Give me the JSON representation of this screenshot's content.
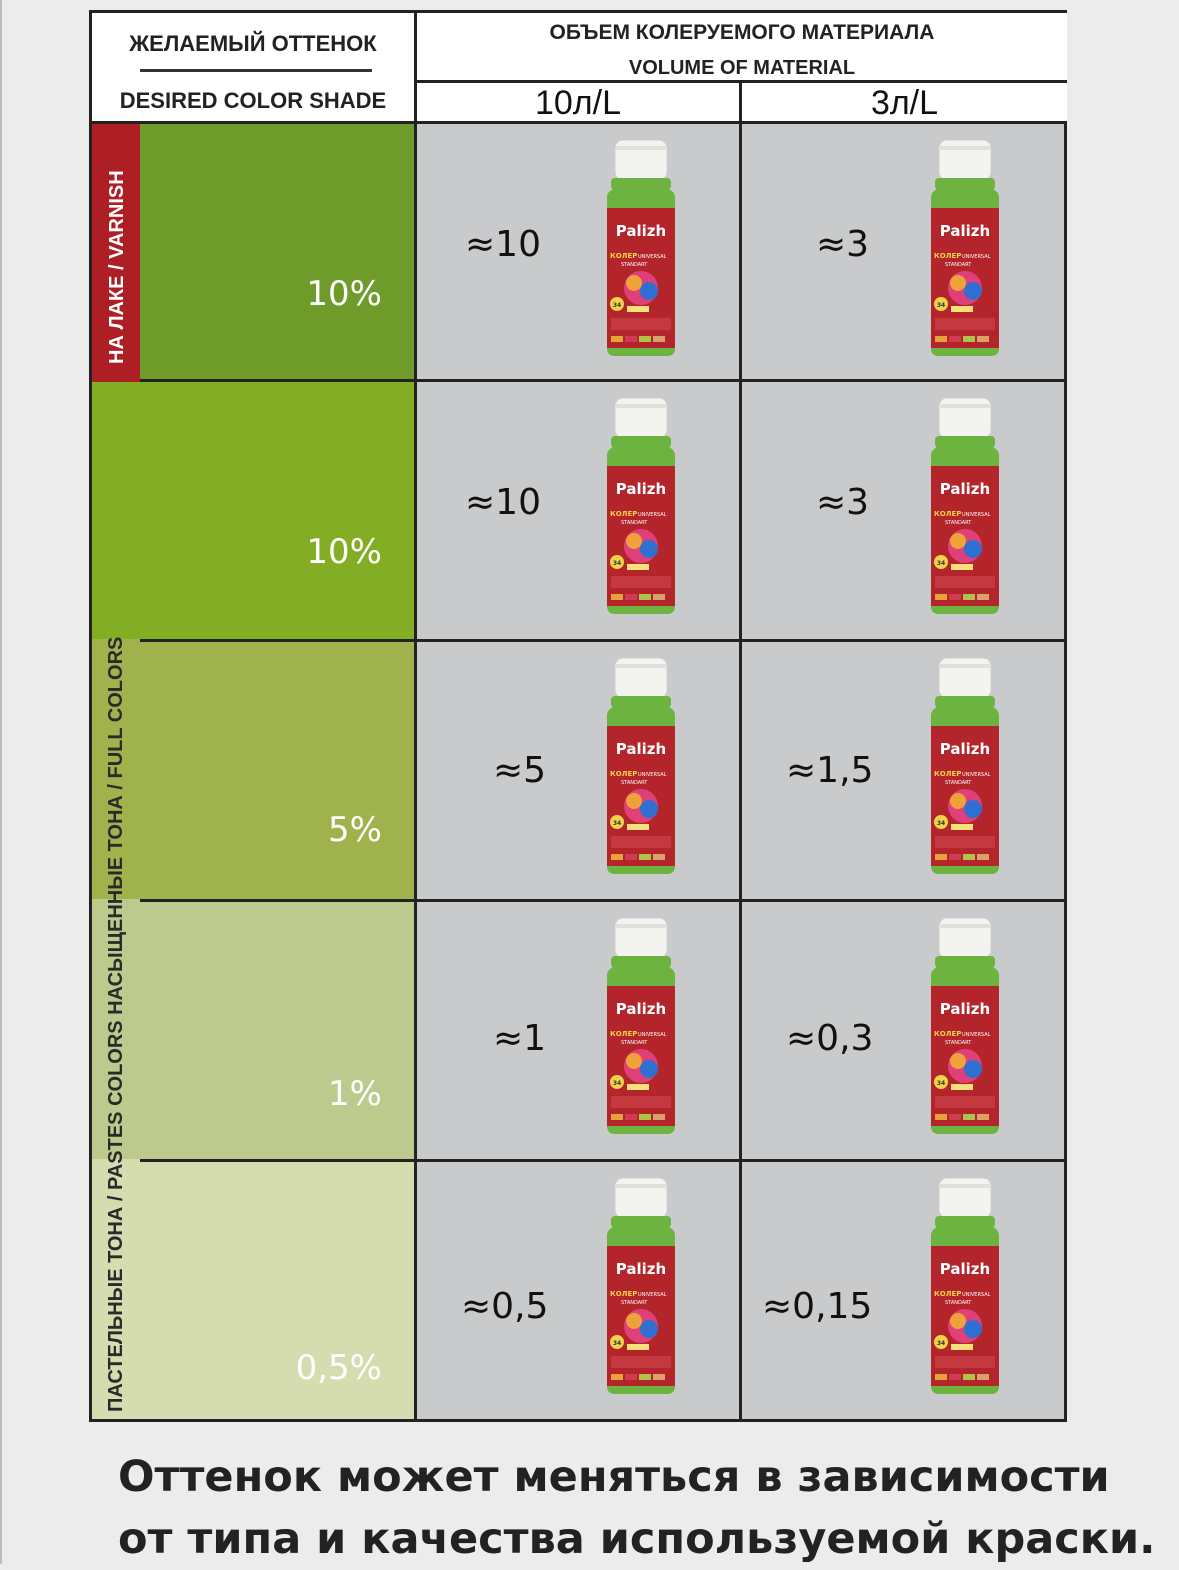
{
  "header": {
    "shade_ru": "ЖЕЛАЕМЫЙ ОТТЕНОК",
    "shade_en": "DESIRED  COLOR SHADE",
    "volume_ru": "ОБЪЕМ КОЛЕРУЕМОГО МАТЕРИАЛА",
    "volume_en": "VOLUME OF MATERIAL",
    "volume_a": "10л/L",
    "volume_b": "3л/L"
  },
  "side_labels": {
    "varnish": "НА ЛАКЕ / VARNISH",
    "full_pastes": "ПАСТЕЛЬНЫЕ ТОНА / PASTES COLORS       НАСЫЩЕННЫЕ ТОНА / FULL COLORS"
  },
  "rows": [
    {
      "percent": "10%",
      "amount_a": "≈10",
      "amount_b": "≈3",
      "shade_color": "#6e9b2a"
    },
    {
      "percent": "10%",
      "amount_a": "≈10",
      "amount_b": "≈3",
      "shade_color": "#84ad26"
    },
    {
      "percent": "5%",
      "amount_a": "≈5",
      "amount_b": "≈1,5",
      "shade_color": "#9fb24c"
    },
    {
      "percent": "1%",
      "amount_a": "≈1",
      "amount_b": "≈0,3",
      "shade_color": "#bccb8d"
    },
    {
      "percent": "0,5%",
      "amount_a": "≈0,5",
      "amount_b": "≈0,15",
      "shade_color": "#d4dcb0"
    }
  ],
  "product": {
    "brand": "Palizh",
    "type": "КОЛЕР",
    "line1": "UNIVERSAL",
    "line2": "STANDART",
    "number": "34"
  },
  "footer": {
    "line1": "Оттенок может меняться в зависимости",
    "line2": "от типа и качества используемой краски."
  },
  "colors": {
    "border": "#222222",
    "cell_bg": "#c9cacb",
    "varnish_red": "#ad1f24",
    "bottle_green": "#6db33f",
    "label_red": "#b3242b"
  }
}
